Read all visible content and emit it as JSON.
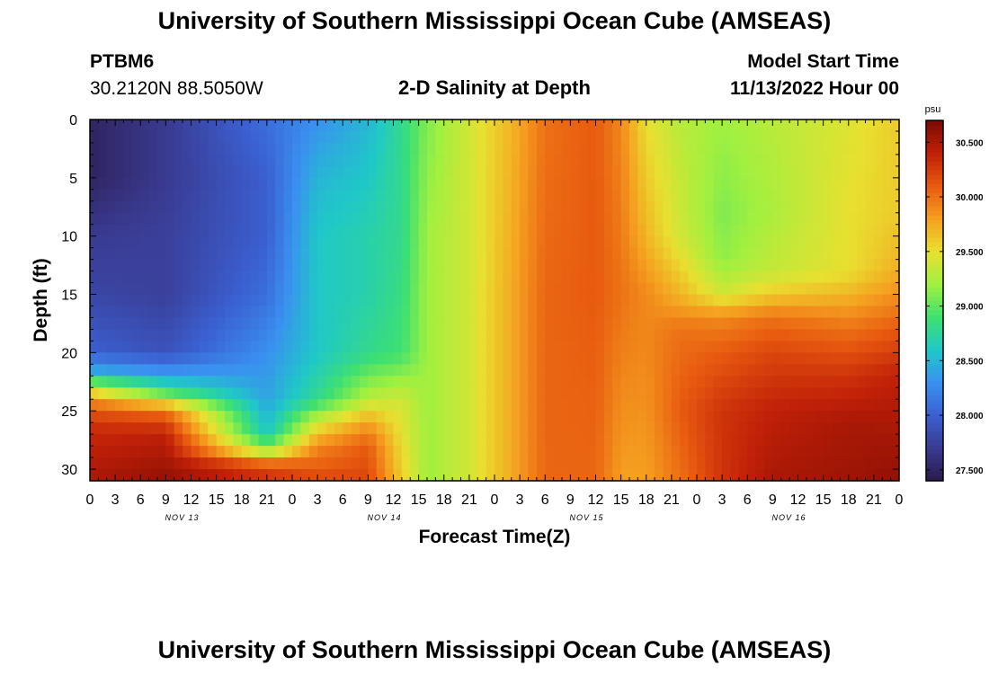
{
  "header": {
    "title": "University of Southern Mississippi Ocean Cube (AMSEAS)",
    "station_id": "PTBM6",
    "coordinates": "30.2120N  88.5050W",
    "plot_title": "2-D Salinity at Depth",
    "model_start_label": "Model Start Time",
    "model_start_value": "11/13/2022 Hour 00"
  },
  "footer": {
    "title": "University of Southern Mississippi Ocean Cube (AMSEAS)"
  },
  "chart_data": {
    "type": "heatmap",
    "title": "2-D Salinity at Depth",
    "xlabel": "Forecast Time(Z)",
    "ylabel": "Depth (ft)",
    "x_hours_range": [
      0,
      96
    ],
    "x_tick_labels": [
      "0",
      "3",
      "6",
      "9",
      "12",
      "15",
      "18",
      "21",
      "0",
      "3",
      "6",
      "9",
      "12",
      "15",
      "18",
      "21",
      "0",
      "3",
      "6",
      "9",
      "12",
      "15",
      "18",
      "21",
      "0",
      "3",
      "6",
      "9",
      "12",
      "15",
      "18",
      "21",
      "0"
    ],
    "day_labels": [
      "NOV 13",
      "NOV 14",
      "NOV 15",
      "NOV 16"
    ],
    "ylim": [
      0,
      31
    ],
    "y_ticks": [
      0,
      5,
      10,
      15,
      20,
      25,
      30
    ],
    "colorbar": {
      "unit": "psu",
      "range": [
        27.4,
        30.7
      ],
      "tick_values": [
        27.5,
        28.0,
        28.5,
        29.0,
        29.5,
        30.0,
        30.5
      ],
      "tick_labels": [
        "27.500",
        "28.000",
        "28.500",
        "29.000",
        "29.500",
        "30.000",
        "30.500"
      ],
      "colors": [
        "#2a1a4a",
        "#3a3a90",
        "#3b5fd0",
        "#3a90f0",
        "#1fc8c8",
        "#3ee070",
        "#a0f040",
        "#e8e030",
        "#f5a020",
        "#e85a10",
        "#c02008",
        "#7a0a02"
      ]
    },
    "grid": false,
    "salinity_profiles": [
      {
        "hour": 0,
        "depth_ft": [
          0,
          5,
          10,
          15,
          20,
          21.5,
          22.5,
          23.5,
          24.5,
          26,
          28,
          31
        ],
        "psu": [
          27.5,
          27.5,
          27.7,
          27.8,
          28.0,
          28.4,
          29.0,
          29.6,
          30.0,
          30.3,
          30.4,
          30.5
        ]
      },
      {
        "hour": 9,
        "depth_ft": [
          0,
          5,
          10,
          15,
          20,
          22,
          23.5,
          25,
          27,
          31
        ],
        "psu": [
          27.7,
          27.7,
          27.75,
          27.75,
          27.9,
          28.4,
          29.0,
          30.0,
          30.4,
          30.6
        ]
      },
      {
        "hour": 21,
        "depth_ft": [
          0,
          5,
          10,
          15,
          20,
          24,
          27,
          28.5,
          29.5,
          31
        ],
        "psu": [
          28.1,
          28.0,
          28.0,
          28.1,
          28.3,
          28.4,
          28.6,
          29.3,
          30.0,
          30.4
        ]
      },
      {
        "hour": 27,
        "depth_ft": [
          0,
          5,
          10,
          15,
          20,
          24,
          26,
          28,
          31
        ],
        "psu": [
          28.3,
          28.5,
          28.6,
          28.6,
          28.6,
          28.8,
          29.4,
          29.9,
          30.2
        ]
      },
      {
        "hour": 33,
        "depth_ft": [
          0,
          5,
          10,
          15,
          20,
          24,
          26,
          28,
          31
        ],
        "psu": [
          28.5,
          28.6,
          28.7,
          28.7,
          28.8,
          29.3,
          29.8,
          30.1,
          30.2
        ]
      },
      {
        "hour": 37,
        "depth_ft": [
          0,
          10,
          20,
          24,
          31
        ],
        "psu": [
          28.8,
          28.8,
          28.9,
          29.4,
          29.6
        ]
      },
      {
        "hour": 40,
        "depth_ft": [
          0,
          10,
          20,
          31
        ],
        "psu": [
          29.1,
          29.2,
          29.2,
          29.2
        ]
      },
      {
        "hour": 45,
        "depth_ft": [
          0,
          15,
          31
        ],
        "psu": [
          29.4,
          29.4,
          29.4
        ]
      },
      {
        "hour": 50,
        "depth_ft": [
          0,
          15,
          31
        ],
        "psu": [
          29.7,
          29.75,
          29.75
        ]
      },
      {
        "hour": 54,
        "depth_ft": [
          0,
          15,
          31
        ],
        "psu": [
          30.0,
          30.05,
          30.05
        ]
      },
      {
        "hour": 60,
        "depth_ft": [
          0,
          15,
          31
        ],
        "psu": [
          30.1,
          30.1,
          30.05
        ]
      },
      {
        "hour": 63,
        "depth_ft": [
          0,
          15,
          31
        ],
        "psu": [
          29.9,
          30.0,
          29.8
        ]
      },
      {
        "hour": 66,
        "depth_ft": [
          0,
          10,
          15,
          20,
          31
        ],
        "psu": [
          29.5,
          29.7,
          29.9,
          29.9,
          29.8
        ]
      },
      {
        "hour": 70,
        "depth_ft": [
          0,
          10,
          15,
          18,
          25,
          31
        ],
        "psu": [
          29.3,
          29.4,
          29.7,
          30.0,
          30.1,
          30.0
        ]
      },
      {
        "hour": 75,
        "depth_ft": [
          0,
          8,
          12,
          15,
          17,
          20,
          25,
          31
        ],
        "psu": [
          29.2,
          29.1,
          29.15,
          29.4,
          29.9,
          30.1,
          30.3,
          30.3
        ]
      },
      {
        "hour": 81,
        "depth_ft": [
          0,
          8,
          13,
          15,
          17,
          20,
          25,
          31
        ],
        "psu": [
          29.3,
          29.25,
          29.35,
          29.6,
          30.0,
          30.2,
          30.4,
          30.5
        ]
      },
      {
        "hour": 90,
        "depth_ft": [
          0,
          8,
          13,
          15,
          18,
          22,
          26,
          31
        ],
        "psu": [
          29.45,
          29.5,
          29.5,
          29.7,
          30.0,
          30.3,
          30.5,
          30.55
        ]
      },
      {
        "hour": 96,
        "depth_ft": [
          0,
          8,
          12,
          14,
          18,
          22,
          31
        ],
        "psu": [
          29.6,
          29.6,
          29.7,
          29.8,
          30.1,
          30.4,
          30.6
        ]
      }
    ]
  }
}
